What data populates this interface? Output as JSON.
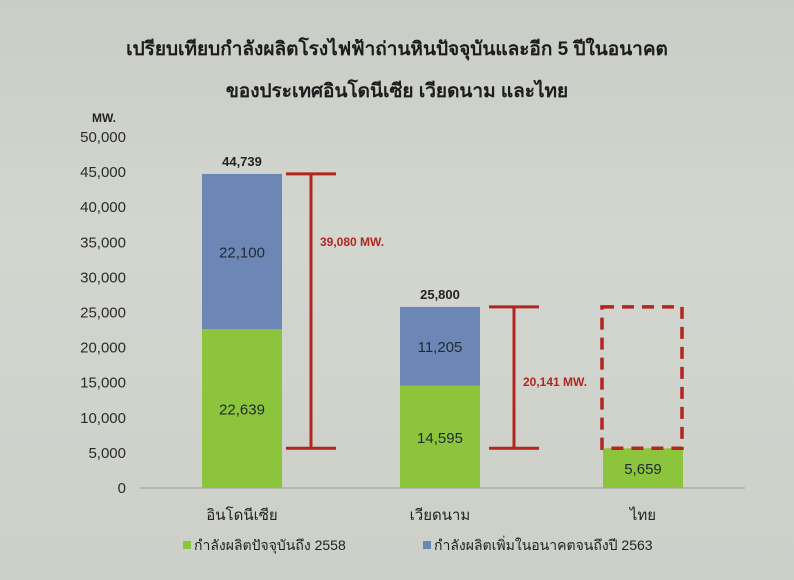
{
  "chart_data": {
    "type": "bar",
    "stacked": true,
    "title": "เปรียบเทียบกำลังผลิตโรงไฟฟ้าถ่านหินปัจจุบันและอีก 5 ปีในอนาคต",
    "subtitle": "ของประเทศอินโดนีเซีย เวียดนาม และไทย",
    "ylabel": "MW.",
    "ylim": [
      0,
      50000
    ],
    "yticks": [
      "0",
      "5,000",
      "10,000",
      "15,000",
      "20,000",
      "25,000",
      "30,000",
      "35,000",
      "40,000",
      "45,000",
      "50,000"
    ],
    "grid": false,
    "legend_position": "bottom",
    "categories": [
      "อินโดนีเซีย",
      "เวียดนาม",
      "ไทย"
    ],
    "series": [
      {
        "name": "กำลังผลิตปัจจุบันถึง  2558",
        "color": "#8cc43c",
        "values": [
          22639,
          14595,
          5659
        ],
        "labels": [
          "22,639",
          "14,595",
          "5,659"
        ]
      },
      {
        "name": "กำลังผลิตเพิ่มในอนาคตจนถึงปี  2563",
        "color": "#6c87b6",
        "values": [
          22100,
          11205,
          0
        ],
        "labels": [
          "22,100",
          "11,205",
          ""
        ]
      }
    ],
    "totals": [
      "44,739",
      "25,800",
      ""
    ],
    "annotations": [
      {
        "text": "39,080 MW.",
        "from": 5659,
        "to": 44739,
        "color": "#b2261f"
      },
      {
        "text": "20,141 MW.",
        "from": 5659,
        "to": 25800,
        "color": "#b2261f"
      }
    ],
    "placeholder_box": {
      "category": "ไทย",
      "from": 5659,
      "to": 25800,
      "color": "#b2261f",
      "style": "dashed"
    }
  }
}
